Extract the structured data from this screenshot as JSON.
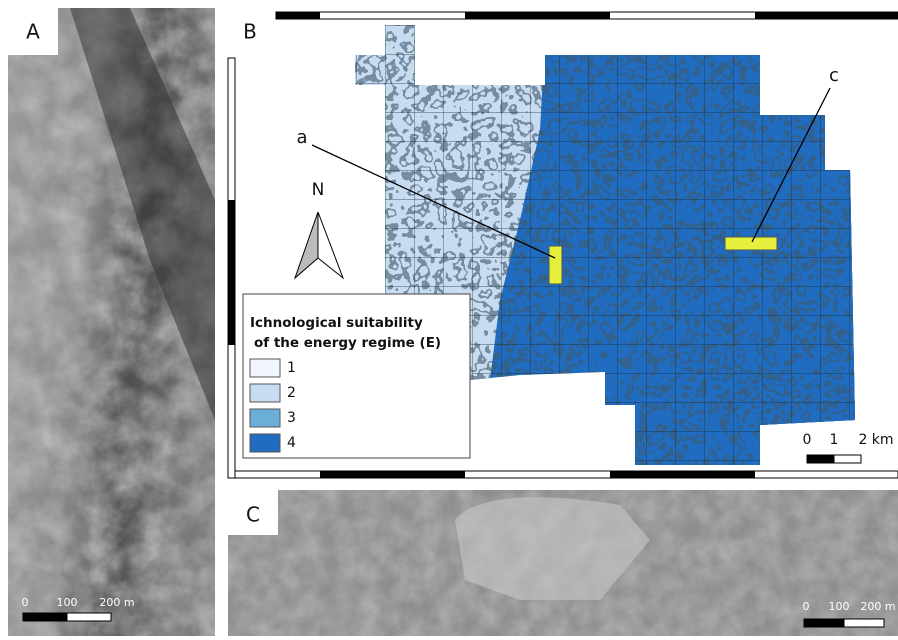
{
  "panels": {
    "A": {
      "label": "A",
      "scale_bar": [
        "0",
        "100",
        "200 m"
      ]
    },
    "B": {
      "label": "B",
      "north": "N",
      "callouts": [
        "a",
        "c"
      ],
      "legend": {
        "title": [
          "Ichnological suitability",
          "of the energy regime (E)"
        ],
        "items": [
          {
            "label": "1",
            "color": "#f1f6fc"
          },
          {
            "label": "2",
            "color": "#c7dcf0"
          },
          {
            "label": "3",
            "color": "#6baed6"
          },
          {
            "label": "4",
            "color": "#1f6cc0"
          }
        ]
      },
      "scale_bar": [
        "0",
        "1",
        "2 km"
      ]
    },
    "C": {
      "label": "C",
      "scale_bar": [
        "0",
        "100",
        "200 m"
      ]
    }
  }
}
